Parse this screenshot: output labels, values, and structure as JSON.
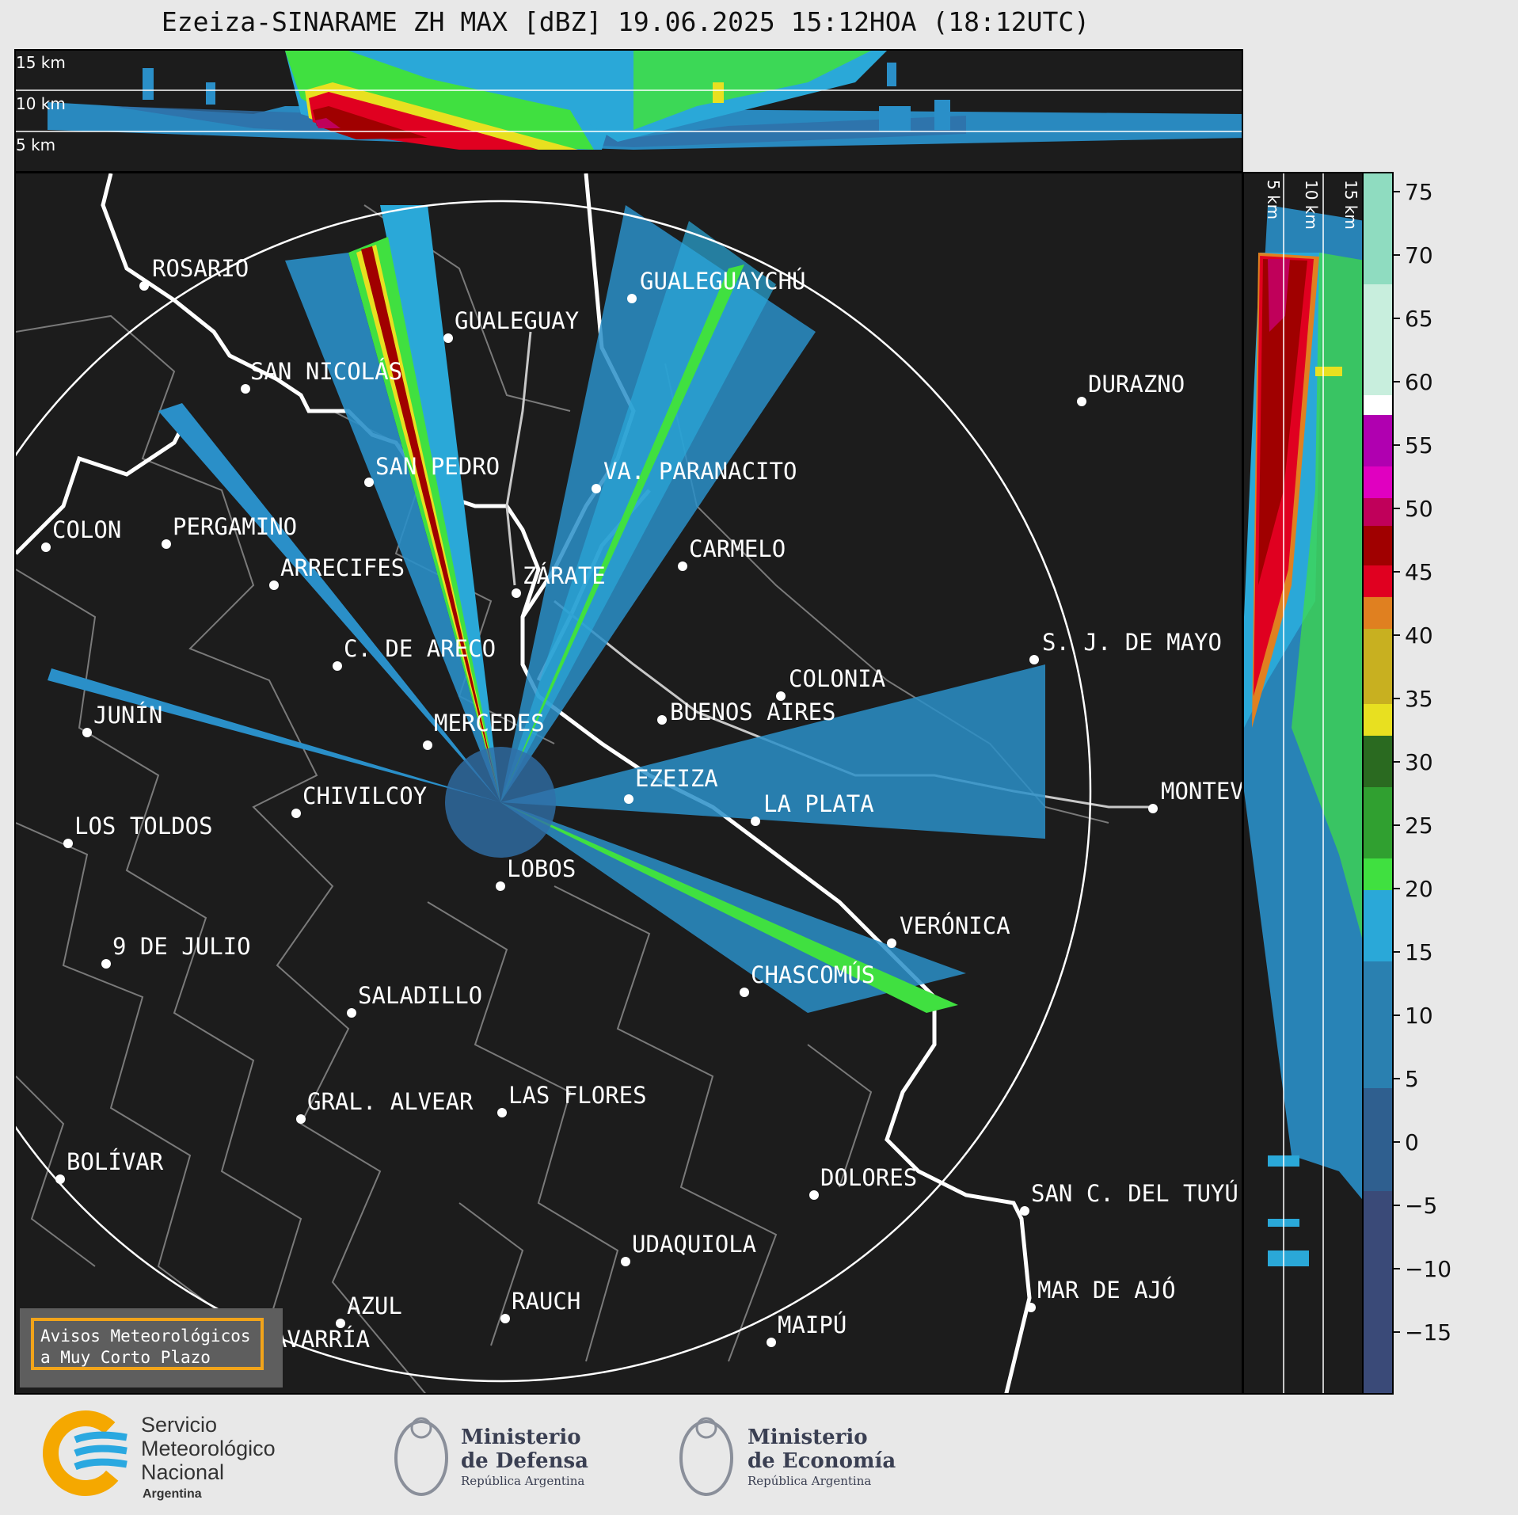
{
  "title": "Ezeiza-SINARAME ZH MAX [dBZ] 19.06.2025 15:12HOA (18:12UTC)",
  "top_panel": {
    "altitude_labels": [
      "15 km",
      "10 km",
      "5 km"
    ]
  },
  "side_panel": {
    "altitude_labels": [
      "5 km",
      "10 km",
      "15 km"
    ]
  },
  "map": {
    "cities": [
      {
        "name": "ROSARIO"
      },
      {
        "name": "GUALEGUAYCHÚ"
      },
      {
        "name": "GUALEGUAY"
      },
      {
        "name": "SAN NICOLÁS"
      },
      {
        "name": "DURAZNO"
      },
      {
        "name": "SAN PEDRO"
      },
      {
        "name": "VA. PARANACITO"
      },
      {
        "name": "COLON"
      },
      {
        "name": "PERGAMINO"
      },
      {
        "name": "CARMELO"
      },
      {
        "name": "ARRECIFES"
      },
      {
        "name": "ZÁRATE"
      },
      {
        "name": "S. J. DE MAYO"
      },
      {
        "name": "C. DE ARECO"
      },
      {
        "name": "COLONIA"
      },
      {
        "name": "BUENOS AIRES"
      },
      {
        "name": "JUNÍN"
      },
      {
        "name": "MERCEDES"
      },
      {
        "name": "EZEIZA"
      },
      {
        "name": "MONTEV"
      },
      {
        "name": "CHIVILCOY"
      },
      {
        "name": "LA PLATA"
      },
      {
        "name": "LOS TOLDOS"
      },
      {
        "name": "LOBOS"
      },
      {
        "name": "VERÓNICA"
      },
      {
        "name": "9 DE JULIO"
      },
      {
        "name": "CHASCOMÚS"
      },
      {
        "name": "SALADILLO"
      },
      {
        "name": "GRAL. ALVEAR"
      },
      {
        "name": "LAS FLORES"
      },
      {
        "name": "BOLÍVAR"
      },
      {
        "name": "DOLORES"
      },
      {
        "name": "SAN C. DEL TUYÚ"
      },
      {
        "name": "UDAQUIOLA"
      },
      {
        "name": "AZUL"
      },
      {
        "name": "RAUCH"
      },
      {
        "name": "MAR DE AJÓ"
      },
      {
        "name": "OLAVARRÍA"
      },
      {
        "name": "MAIPÚ"
      }
    ]
  },
  "colorbar": {
    "unit": "dBZ",
    "ticks": [
      "75",
      "70",
      "65",
      "60",
      "55",
      "50",
      "45",
      "40",
      "35",
      "30",
      "25",
      "20",
      "15",
      "10",
      "5",
      "0",
      "−5",
      "−10",
      "−15"
    ],
    "colors": {
      "70-77": "#8fdcc0",
      "60-70": "#c8eedd",
      "58-60": "#ffffff",
      "53-58": "#b000b0",
      "50-53": "#e000c0",
      "48-50": "#c0005a",
      "45-48": "#a00000",
      "43-45": "#e00020",
      "40-43": "#e08020",
      "35-40": "#c8b020",
      "30-35": "#e8e020",
      "25-30": "#2a6a20",
      "20-25": "#30a030",
      "17-20": "#40e040",
      "10-17": "#2aa8d8",
      "0-10": "#2a80b0",
      "below-0": "#3a4a78"
    }
  },
  "avisos": {
    "line1": "Avisos Meteorológicos",
    "line2": "a Muy Corto Plazo"
  },
  "footer": {
    "smn": {
      "line1": "Servicio",
      "line2": "Meteorológico",
      "line3": "Nacional",
      "line4": "Argentina"
    },
    "defensa": {
      "line1": "Ministerio",
      "line2": "de Defensa",
      "line3": "República Argentina"
    },
    "economia": {
      "line1": "Ministerio",
      "line2": "de Economía",
      "line3": "República Argentina"
    }
  }
}
